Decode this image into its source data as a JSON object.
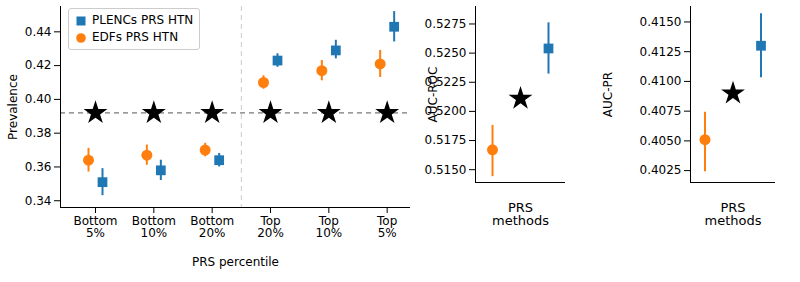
{
  "chart_data": [
    {
      "type": "scatter",
      "x_label": "PRS percentile",
      "y_label": "Prevalence",
      "categories": [
        "Bottom 5%",
        "Bottom 10%",
        "Bottom 20%",
        "Top 20%",
        "Top 10%",
        "Top 5%"
      ],
      "ylim": [
        0.336,
        0.455
      ],
      "yticks": [
        0.34,
        0.36,
        0.38,
        {
          "value": 0.4,
          "label": "0.40"
        },
        0.42,
        0.44
      ],
      "legend": "upper left",
      "series": [
        {
          "name": "PLENCs PRS HTN",
          "color": "#1f77b4",
          "marker": "square",
          "values": [
            0.351,
            0.358,
            0.364,
            0.423,
            0.429,
            0.443
          ],
          "error_low": [
            0.343,
            0.352,
            0.36,
            0.419,
            0.424,
            0.434
          ],
          "error_high": [
            0.359,
            0.364,
            0.368,
            0.427,
            0.435,
            0.452
          ]
        },
        {
          "name": "EDFs PRS HTN",
          "color": "#ff7f0e",
          "marker": "circle",
          "values": [
            0.364,
            0.367,
            0.37,
            0.41,
            0.417,
            0.421
          ],
          "error_low": [
            0.357,
            0.361,
            0.366,
            0.406,
            0.411,
            0.413
          ],
          "error_high": [
            0.371,
            0.373,
            0.374,
            0.414,
            0.423,
            0.429
          ]
        },
        {
          "color": "#000000",
          "marker": "star",
          "line_style": "dashed",
          "values": [
            0.392,
            0.392,
            0.392,
            0.392,
            0.392,
            0.392
          ]
        }
      ]
    },
    {
      "type": "scatter",
      "x_label": "PRS methods",
      "y_label": "AUC-ROC",
      "tick_labels": "y",
      "ylim": [
        0.5139,
        0.529
      ],
      "yticks": [
        {
          "value": 0.515,
          "label": "0.5150"
        },
        {
          "value": 0.5175,
          "label": "0.5175"
        },
        {
          "value": 0.52,
          "label": "0.5200"
        },
        {
          "value": 0.5225,
          "label": "0.5225"
        },
        {
          "value": 0.525,
          "label": "0.5250"
        },
        {
          "value": 0.5275,
          "label": "0.5275"
        }
      ],
      "series": [
        {
          "name": "PLENCs PRS HTN",
          "color": "#1f77b4",
          "marker": "square",
          "values": [
            0.5254
          ],
          "error_low": [
            0.5232
          ],
          "error_high": [
            0.5276
          ]
        },
        {
          "name": "EDFs PRS HTN",
          "color": "#ff7f0e",
          "marker": "circle",
          "values": [
            0.5167
          ],
          "error_low": [
            0.5144
          ],
          "error_high": [
            0.5188
          ]
        },
        {
          "color": "#000000",
          "marker": "star",
          "values": [
            0.5211
          ]
        }
      ]
    },
    {
      "type": "scatter",
      "x_label": "PRS methods",
      "y_label": "AUC-PR",
      "tick_labels": "y",
      "ylim": [
        0.4015,
        0.4163
      ],
      "yticks": [
        {
          "value": 0.4025,
          "label": "0.4025"
        },
        {
          "value": 0.405,
          "label": "0.4050"
        },
        {
          "value": 0.4075,
          "label": "0.4075"
        },
        {
          "value": 0.41,
          "label": "0.4100"
        },
        {
          "value": 0.4125,
          "label": "0.4125"
        },
        {
          "value": 0.415,
          "label": "0.4150"
        }
      ],
      "series": [
        {
          "name": "PLENCs PRS HTN",
          "color": "#1f77b4",
          "marker": "square",
          "values": [
            0.413
          ],
          "error_low": [
            0.4103
          ],
          "error_high": [
            0.4157
          ]
        },
        {
          "name": "EDFs PRS HTN",
          "color": "#ff7f0e",
          "marker": "circle",
          "values": [
            0.4051
          ],
          "error_low": [
            0.4024
          ],
          "error_high": [
            0.4074
          ]
        },
        {
          "color": "#000000",
          "marker": "star",
          "values": [
            0.409
          ]
        }
      ]
    }
  ]
}
